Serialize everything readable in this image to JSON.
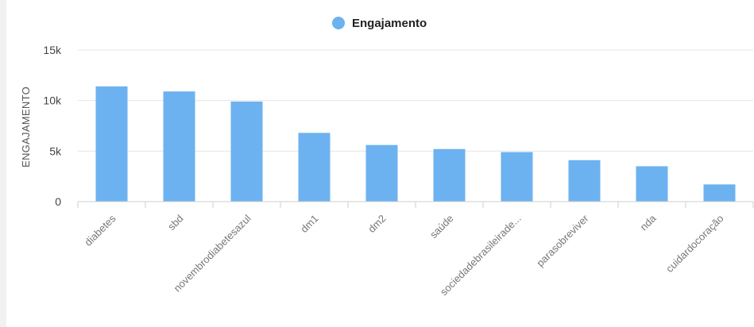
{
  "chart_data": {
    "type": "bar",
    "categories": [
      "diabetes",
      "sbd",
      "novembrodiabetesazul",
      "dm1",
      "dm2",
      "saúde",
      "sociedadebrasileirade...",
      "parasobreviver",
      "nda",
      "cuidardocoração"
    ],
    "series": [
      {
        "name": "Engajamento",
        "values": [
          11400,
          10900,
          9900,
          6800,
          5600,
          5200,
          4900,
          4100,
          3500,
          1700
        ]
      }
    ],
    "ylabel": "ENGAJAMENTO",
    "xlabel": "",
    "ylim": [
      0,
      15000
    ],
    "yticks": [
      0,
      5000,
      10000,
      15000
    ],
    "ytick_labels": [
      "0",
      "5k",
      "10k",
      "15k"
    ],
    "legend": {
      "position": "top-center"
    },
    "grid": true,
    "colors": {
      "bar": "#6cb2f0",
      "grid": "#e4e4e4",
      "axis": "#cfcfcf"
    }
  }
}
